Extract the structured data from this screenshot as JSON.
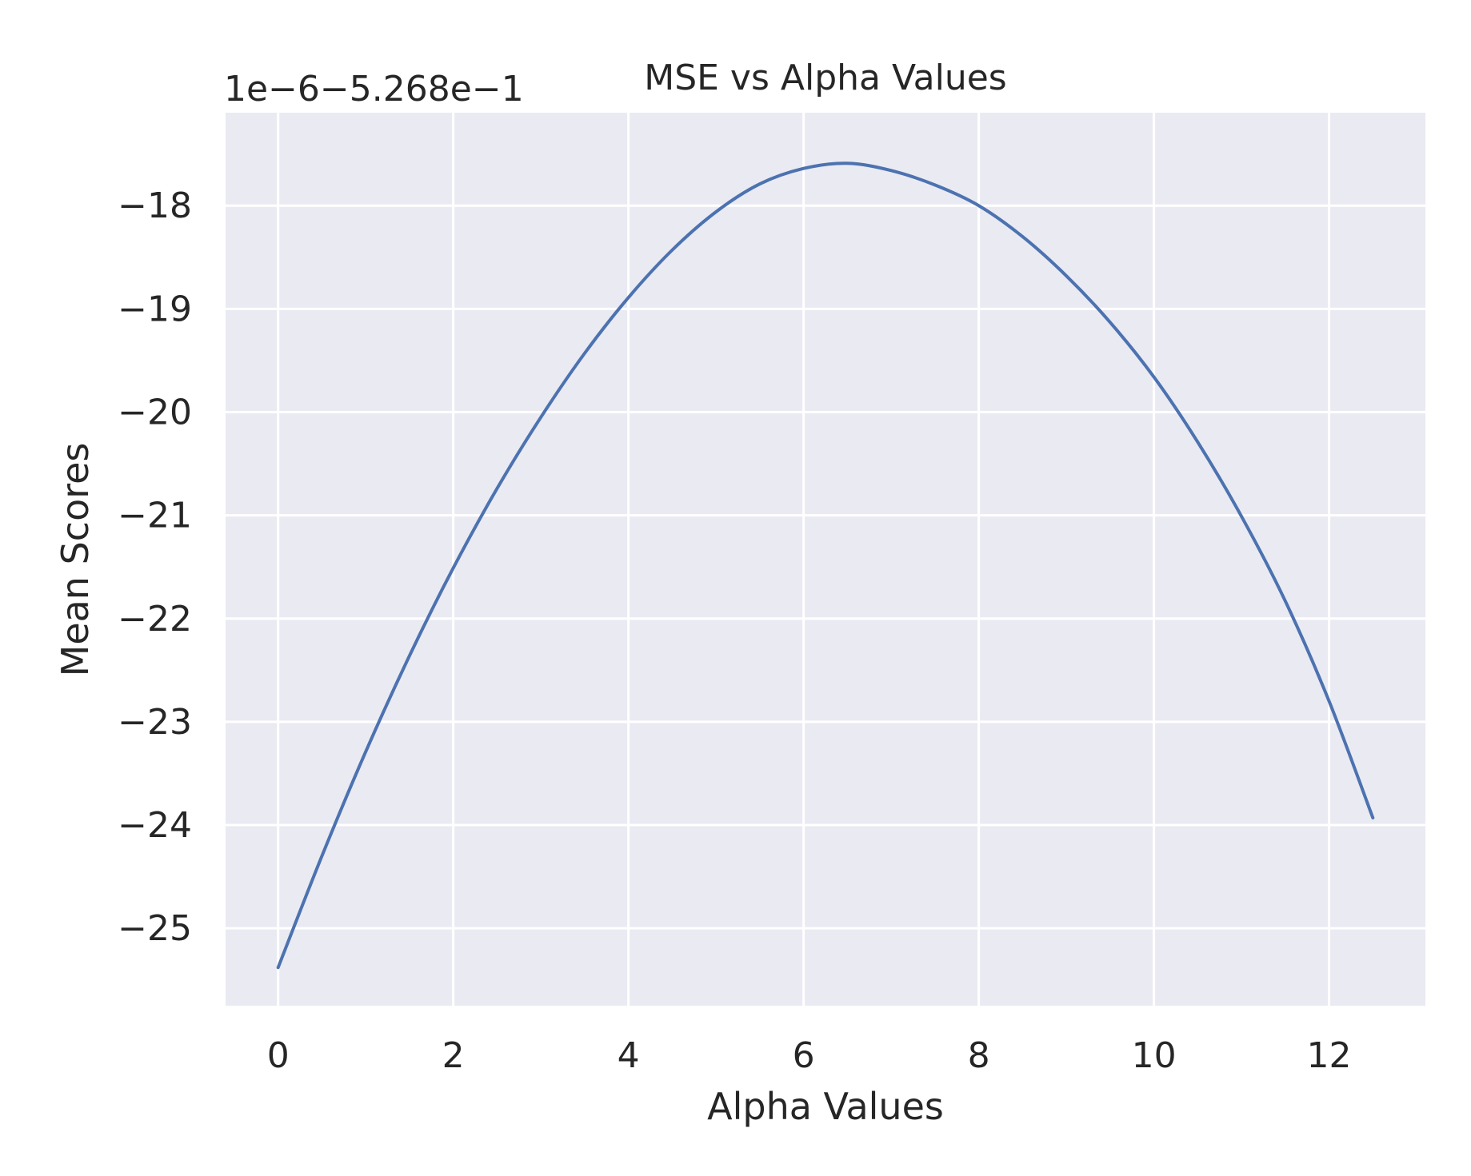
{
  "chart_data": {
    "type": "line",
    "title": "MSE vs Alpha Values",
    "xlabel": "Alpha Values",
    "ylabel": "Mean Scores",
    "offset_label": "1e−6−5.268e−1",
    "xlim": [
      -0.6,
      13.1
    ],
    "ylim": [
      -25.75,
      -17.1
    ],
    "x_ticks": [
      0,
      2,
      4,
      6,
      8,
      10,
      12
    ],
    "x_tick_labels": [
      "0",
      "2",
      "4",
      "6",
      "8",
      "10",
      "12"
    ],
    "y_ticks": [
      -25,
      -24,
      -23,
      -22,
      -21,
      -20,
      -19,
      -18
    ],
    "y_tick_labels": [
      "−25",
      "−24",
      "−23",
      "−22",
      "−21",
      "−20",
      "−19",
      "−18"
    ],
    "grid": true,
    "colors": {
      "background": "#EAEAF2",
      "grid": "#FFFFFF",
      "line": "#4C72B0",
      "text": "#262626"
    },
    "series": [
      {
        "x": [
          0,
          0.5,
          1,
          1.5,
          2,
          2.5,
          3,
          3.5,
          4,
          4.5,
          5,
          5.5,
          6,
          6.5,
          7,
          7.5,
          8,
          8.5,
          9,
          9.5,
          10,
          10.5,
          11,
          11.5,
          12,
          12.5
        ],
        "values": [
          -25.38,
          -24.3,
          -23.29,
          -22.36,
          -21.51,
          -20.74,
          -20.05,
          -19.43,
          -18.89,
          -18.43,
          -18.06,
          -17.79,
          -17.64,
          -17.59,
          -17.66,
          -17.8,
          -18.0,
          -18.3,
          -18.68,
          -19.13,
          -19.66,
          -20.29,
          -21.01,
          -21.83,
          -22.8,
          -23.93
        ]
      }
    ]
  }
}
